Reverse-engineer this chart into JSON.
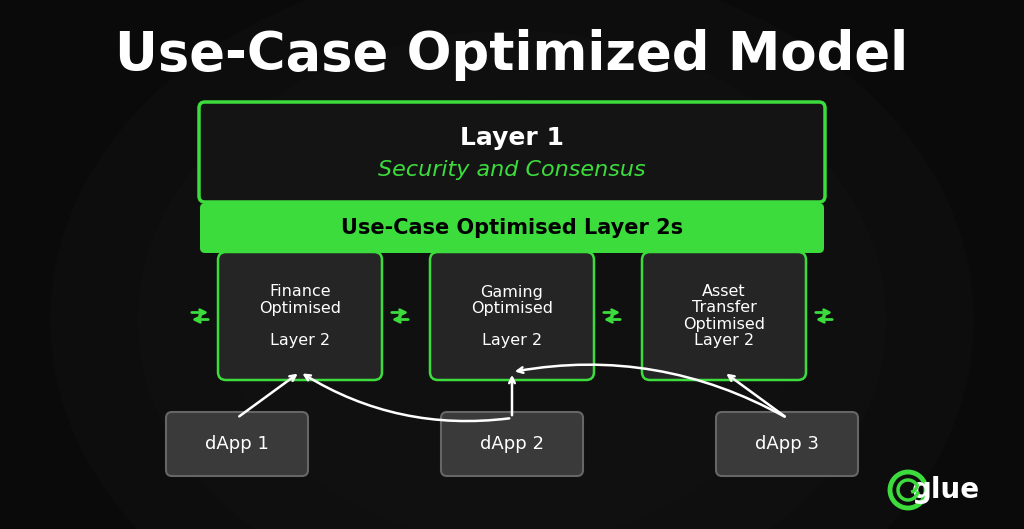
{
  "title": "Use-Case Optimized Model",
  "title_fontsize": 38,
  "title_color": "#ffffff",
  "bg_color": "#0a0a0a",
  "green_bright": "#3ddc3d",
  "box_border_green": "#3ddc3d",
  "text_white": "#ffffff",
  "text_green": "#3ddc3d",
  "layer1_title": "Layer 1",
  "layer1_subtitle": "Security and Consensus",
  "layer2_bar_text": "Use-Case Optimised Layer 2s",
  "l2_boxes": [
    "Finance\nOptimised\n\nLayer 2",
    "Gaming\nOptimised\n\nLayer 2",
    "Asset\nTransfer\nOptimised\nLayer 2"
  ],
  "dapp_boxes": [
    "dApp 1",
    "dApp 2",
    "dApp 3"
  ],
  "glue_text": "glue"
}
